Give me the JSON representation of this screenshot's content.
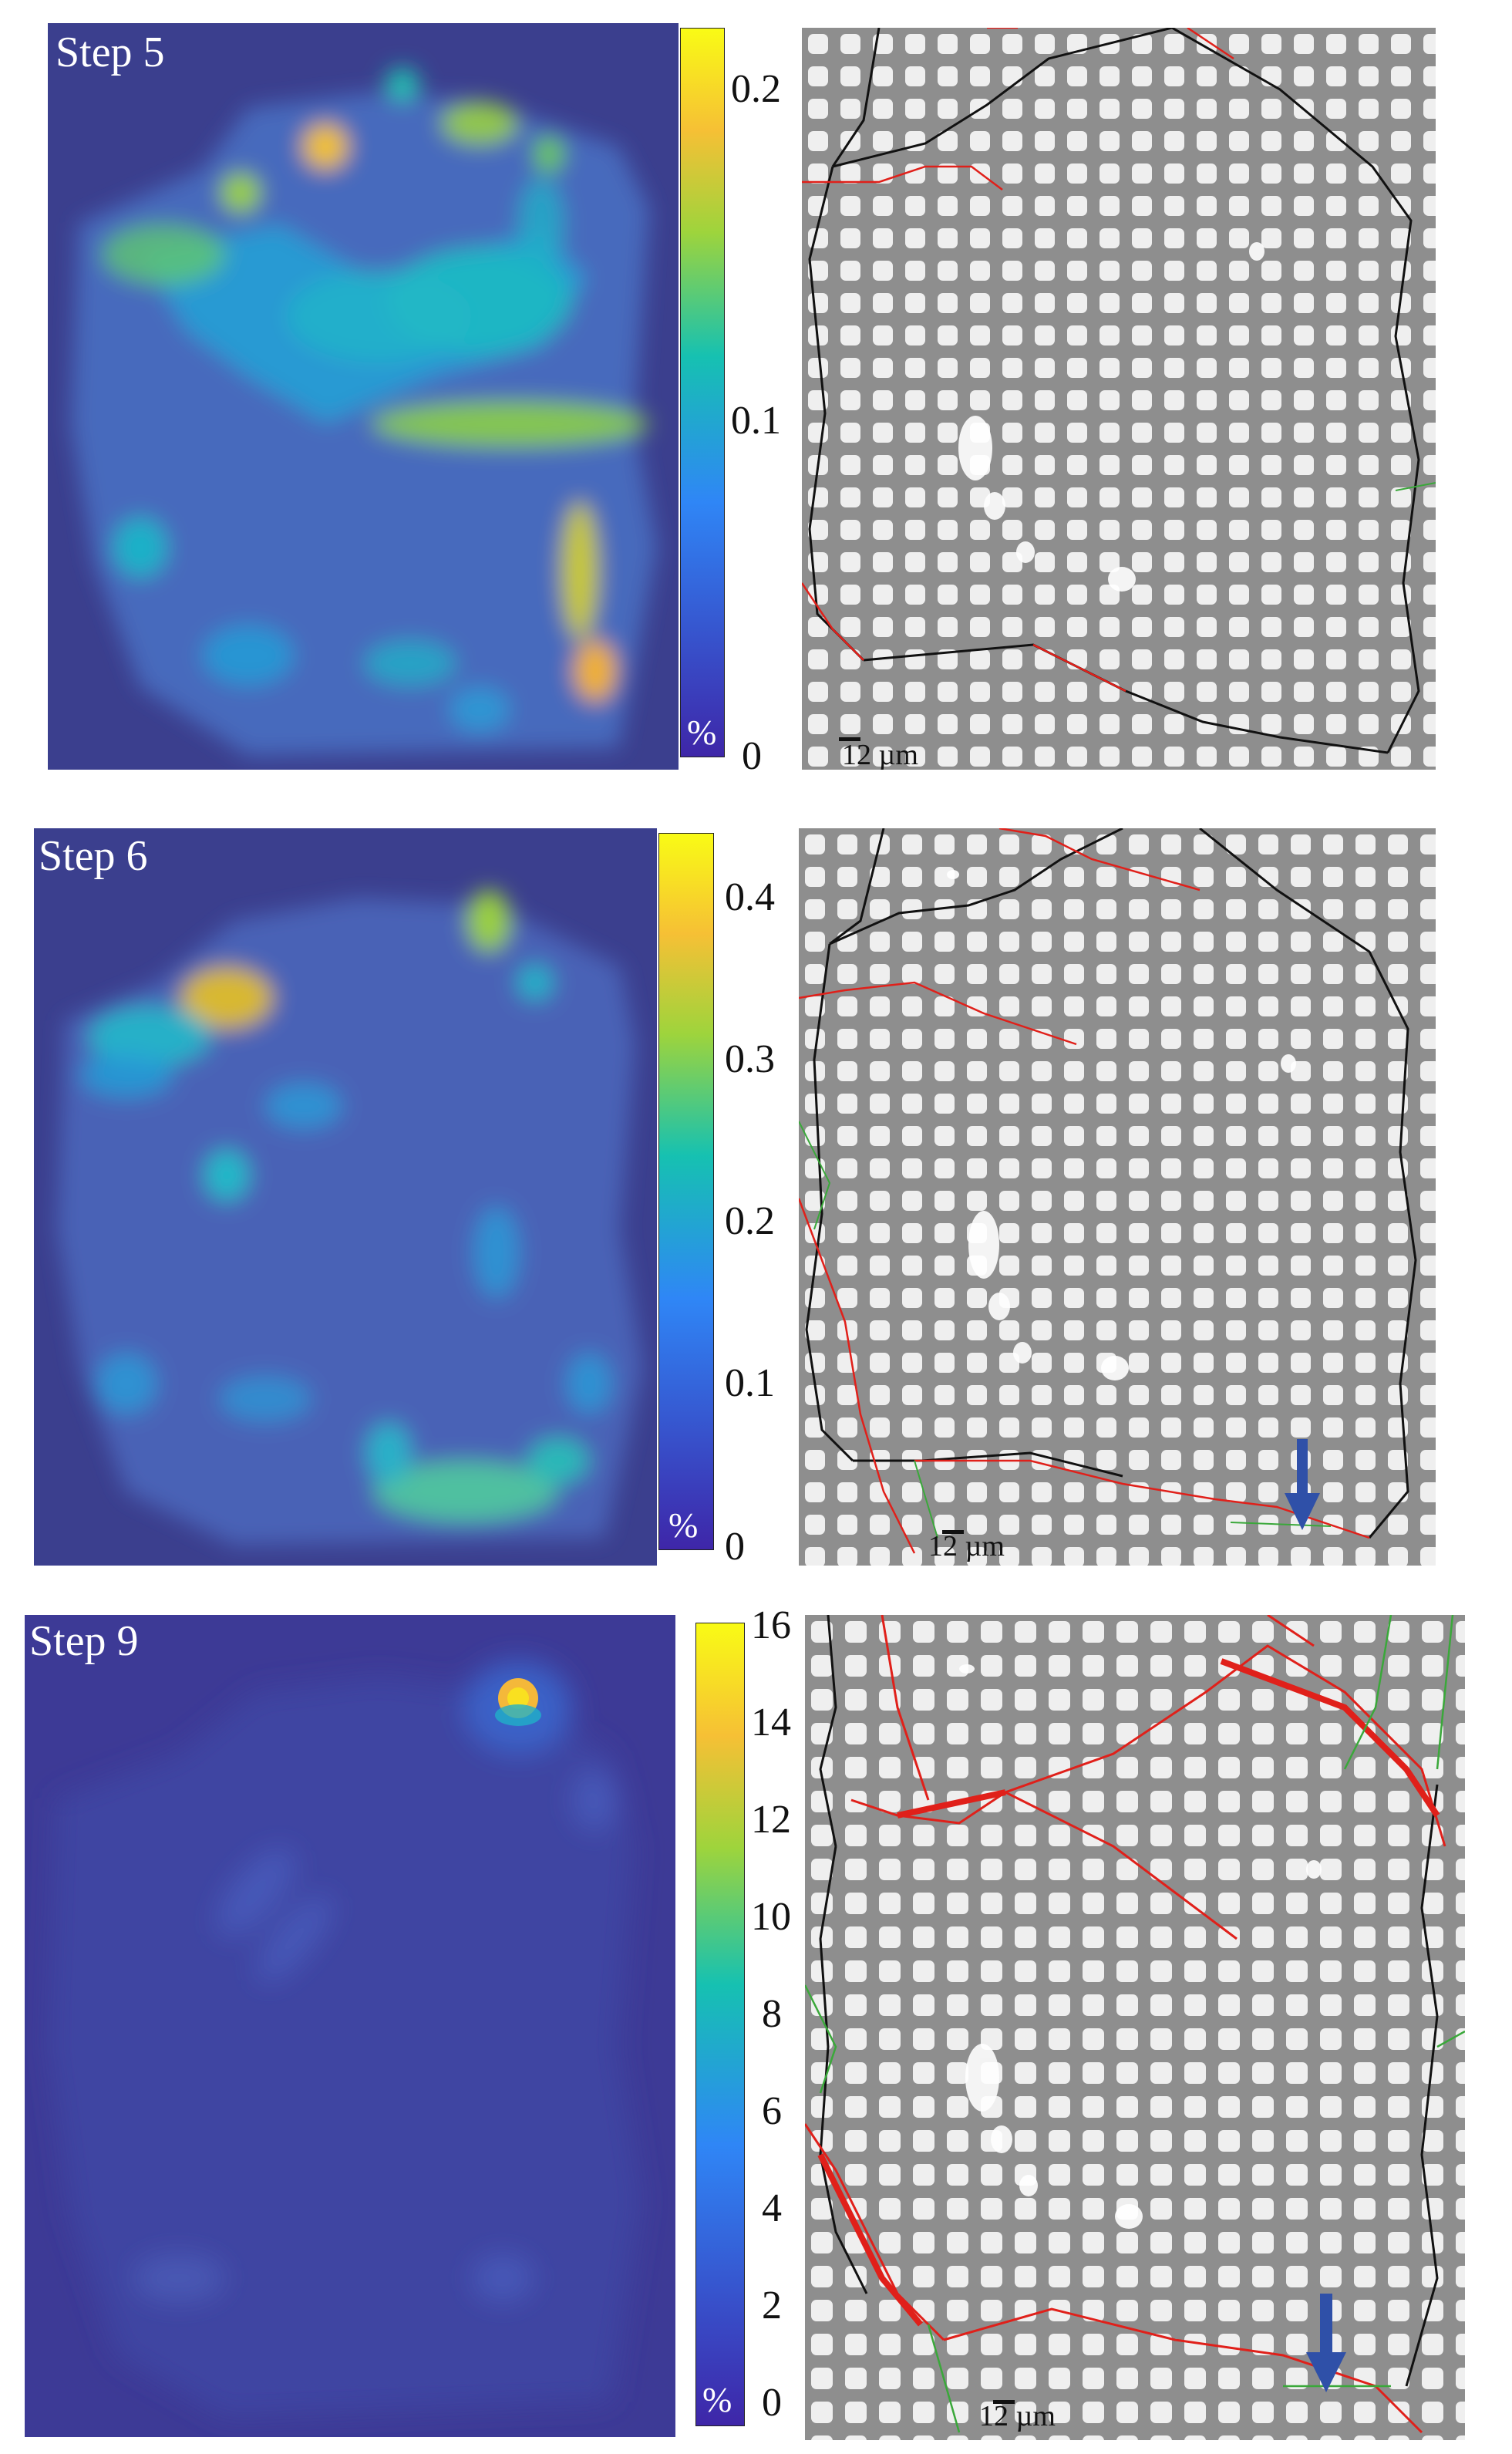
{
  "panels": [
    {
      "id": "p1",
      "step_label": "Step 5",
      "colorbar_unit": "%",
      "colorbar_ticks": [
        "0.2",
        "0.1",
        "0"
      ],
      "scale_bar_label": "12 µm",
      "arrow": false
    },
    {
      "id": "p2",
      "step_label": "Step 6",
      "colorbar_unit": "%",
      "colorbar_ticks": [
        "0.4",
        "0.3",
        "0.2",
        "0.1",
        "0"
      ],
      "scale_bar_label": "12 µm",
      "arrow": true
    },
    {
      "id": "p3",
      "step_label": "Step 9",
      "colorbar_unit": "%",
      "colorbar_ticks": [
        "16",
        "14",
        "12",
        "10",
        "8",
        "6",
        "4",
        "2",
        "0"
      ],
      "scale_bar_label": "12 µm",
      "arrow": true
    }
  ],
  "colors": {
    "map_background": "#3b3f8e",
    "colormap": [
      "#3e26a8",
      "#2f86f6",
      "#16c1b1",
      "#9ed43c",
      "#f6c035",
      "#f9fb15"
    ],
    "grain_boundary_black": "#111111",
    "crack_red": "#e0201a",
    "trace_green": "#3aa83a",
    "arrow_blue": "#2f50a8"
  }
}
